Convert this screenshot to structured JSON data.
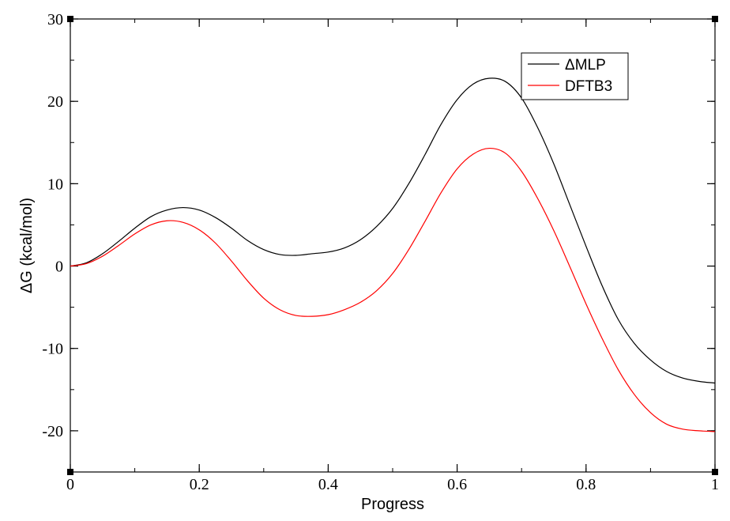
{
  "chart_data": {
    "type": "line",
    "title": "",
    "xlabel": "Progress",
    "ylabel": "ΔG (kcal/mol)",
    "xlim": [
      0,
      1
    ],
    "ylim": [
      -25,
      30
    ],
    "x_ticks": [
      0,
      0.2,
      0.4,
      0.6,
      0.8,
      1
    ],
    "x_tick_labels": [
      "0",
      "0.2",
      "0.4",
      "0.6",
      "0.8",
      "1"
    ],
    "y_ticks": [
      -20,
      -10,
      0,
      10,
      20,
      30
    ],
    "y_tick_labels": [
      "-20",
      "-10",
      "0",
      "10",
      "20",
      "30"
    ],
    "x_minor_step": 0.1,
    "y_minor_step": 5,
    "grid": false,
    "legend_position": "top-right",
    "series": [
      {
        "name": "ΔMLP",
        "color": "#000000",
        "x": [
          0,
          0.025,
          0.05,
          0.075,
          0.1,
          0.125,
          0.15,
          0.175,
          0.2,
          0.225,
          0.25,
          0.275,
          0.3,
          0.325,
          0.35,
          0.375,
          0.4,
          0.425,
          0.45,
          0.475,
          0.5,
          0.525,
          0.55,
          0.575,
          0.6,
          0.625,
          0.65,
          0.675,
          0.7,
          0.725,
          0.75,
          0.775,
          0.8,
          0.825,
          0.85,
          0.875,
          0.9,
          0.925,
          0.95,
          0.975,
          1.0
        ],
        "y": [
          0,
          0.4,
          1.5,
          3.0,
          4.6,
          6.0,
          6.8,
          7.1,
          6.8,
          5.9,
          4.6,
          3.1,
          2.0,
          1.4,
          1.3,
          1.5,
          1.7,
          2.2,
          3.2,
          4.8,
          7.0,
          10.0,
          13.5,
          17.2,
          20.2,
          22.1,
          22.8,
          22.4,
          20.4,
          16.8,
          12.4,
          7.4,
          2.4,
          -2.4,
          -6.5,
          -9.4,
          -11.4,
          -12.8,
          -13.6,
          -14.0,
          -14.2
        ]
      },
      {
        "name": "DFTB3",
        "color": "#ff0000",
        "x": [
          0,
          0.025,
          0.05,
          0.075,
          0.1,
          0.125,
          0.15,
          0.175,
          0.2,
          0.225,
          0.25,
          0.275,
          0.3,
          0.325,
          0.35,
          0.375,
          0.4,
          0.425,
          0.45,
          0.475,
          0.5,
          0.525,
          0.55,
          0.575,
          0.6,
          0.625,
          0.65,
          0.675,
          0.7,
          0.725,
          0.75,
          0.775,
          0.8,
          0.825,
          0.85,
          0.875,
          0.9,
          0.925,
          0.95,
          0.975,
          1.0
        ],
        "y": [
          0,
          0.3,
          1.2,
          2.5,
          3.9,
          5.0,
          5.5,
          5.3,
          4.4,
          2.8,
          0.6,
          -1.8,
          -3.9,
          -5.3,
          -6.0,
          -6.1,
          -5.9,
          -5.3,
          -4.4,
          -3.0,
          -0.9,
          2.0,
          5.4,
          8.9,
          11.8,
          13.6,
          14.3,
          13.7,
          11.5,
          8.2,
          4.3,
          -0.1,
          -4.6,
          -8.8,
          -12.6,
          -15.6,
          -17.8,
          -19.2,
          -19.8,
          -20.0,
          -20.1
        ]
      }
    ]
  }
}
